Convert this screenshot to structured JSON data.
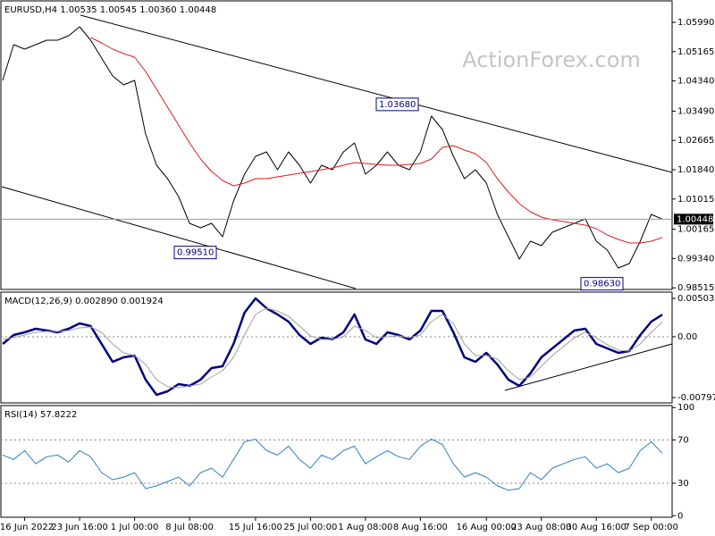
{
  "chart_data": [
    {
      "type": "line",
      "title": "EURUSD,H4  1.00535 1.00545 1.00360 1.00448",
      "watermark": "ActionForex.com",
      "ylim": [
        0.98495,
        1.06568
      ],
      "yticks": [
        {
          "value": 1.0599,
          "label": "1.05990"
        },
        1.05165,
        {
          "value": 1.0434,
          "label": "1.04340"
        },
        {
          "value": 1.0349,
          "label": "1.03490"
        },
        1.02665,
        {
          "value": 1.0184,
          "label": "1.01840"
        },
        1.01015,
        1.00165,
        {
          "value": 0.9934,
          "label": "0.99340"
        },
        0.98515
      ],
      "annotations": [
        {
          "value": 1.0368,
          "label": "1.03680"
        },
        {
          "value": 0.9951,
          "label": "0.99510"
        },
        {
          "value": 0.9863,
          "label": "0.98630"
        }
      ],
      "series": [
        {
          "color": "#000000",
          "values": [
            1.04355,
            1.05361,
            1.05235,
            1.05361,
            1.05487,
            1.05487,
            1.05613,
            1.05864,
            1.05487,
            1.04984,
            1.04481,
            1.04229,
            1.04355,
            1.02846,
            1.01966,
            1.01589,
            1.01086,
            1.00331,
            1.00205,
            1.00331,
            0.99954,
            1.0096,
            1.01714,
            1.02217,
            1.02343,
            1.0184,
            1.02343,
            1.01966,
            1.01463,
            1.01966,
            1.0184,
            1.02343,
            1.02595,
            1.01714,
            1.01966,
            1.02343,
            1.01966,
            1.0184,
            1.02343,
            1.03349,
            1.02972,
            1.02217,
            1.01589,
            1.0184,
            1.01463,
            1.00583,
            0.99954,
            0.99325,
            0.99828,
            0.99702,
            1.0008,
            1.00205,
            1.00331,
            1.00457,
            0.99828,
            0.99577,
            0.99074,
            0.992,
            0.99828,
            1.00583,
            1.00448
          ]
        },
        {
          "color": "#e41a1c",
          "values": [
            null,
            null,
            null,
            null,
            null,
            null,
            null,
            null,
            1.05562,
            1.05412,
            1.05235,
            1.0511,
            1.05009,
            1.04607,
            1.04104,
            1.03601,
            1.03098,
            1.02595,
            1.02142,
            1.0179,
            1.01538,
            1.01388,
            1.01463,
            1.01589,
            1.01589,
            1.01639,
            1.0169,
            1.0174,
            1.0179,
            1.0184,
            1.0189,
            1.01966,
            1.02041,
            1.02016,
            1.01991,
            1.01966,
            1.01966,
            1.01991,
            1.02016,
            1.02142,
            1.02469,
            1.02519,
            1.02394,
            1.02293,
            1.02041,
            1.01589,
            1.01211,
            1.00885,
            1.00658,
            1.00507,
            1.00432,
            1.00382,
            1.00331,
            1.00281,
            1.0018,
            1.00004,
            0.99879,
            0.99778,
            0.99778,
            0.99828,
            0.99929
          ]
        }
      ]
    },
    {
      "type": "line",
      "title": "MACD(12,26,9) 0.002890 0.001924",
      "ylim": [
        -0.00856,
        0.005738
      ],
      "yticks": [
        0.005035,
        {
          "value": 0,
          "label": "0.00"
        },
        -0.007973
      ],
      "levels": [
        0
      ],
      "series": [
        {
          "color": "#000080",
          "values": [
            -0.00094,
            0.00023,
            0.00058,
            0.00105,
            0.00082,
            0.00058,
            0.00105,
            0.00175,
            0.0014,
            -0.00094,
            -0.00329,
            -0.0027,
            -0.00247,
            -0.00563,
            -0.00762,
            -0.00715,
            -0.00622,
            -0.00645,
            -0.00563,
            -0.00411,
            -0.00387,
            -0.00094,
            0.00316,
            0.00504,
            0.00375,
            0.00293,
            0.00199,
            0.00023,
            -0.00094,
            -0.00012,
            -0.00036,
            0.00058,
            0.00293,
            -0.00036,
            -0.00094,
            0.00058,
            0.00023,
            -0.00036,
            0.00082,
            0.00339,
            0.00339,
            0.00058,
            -0.0027,
            -0.00329,
            -0.00211,
            -0.00364,
            -0.00563,
            -0.00645,
            -0.00481,
            -0.0027,
            -0.00153,
            -0.00036,
            0.00082,
            0.00105,
            -0.00094,
            -0.00153,
            -0.00211,
            -0.00188,
            0.00023,
            0.00199,
            0.00289
          ]
        },
        {
          "color": "#a0a0a0",
          "values": [
            -0.00036,
            -0.00012,
            0.00023,
            0.00058,
            0.0007,
            0.0007,
            0.00082,
            0.00117,
            0.00128,
            0.00058,
            -0.00094,
            -0.00211,
            -0.00247,
            -0.00364,
            -0.00563,
            -0.00657,
            -0.00669,
            -0.00645,
            -0.00622,
            -0.00528,
            -0.00446,
            -0.0027,
            0.00023,
            0.00293,
            0.00375,
            0.00339,
            0.00269,
            0.0014,
            0.00011,
            -0.00036,
            -0.00036,
            0,
            0.0014,
            0.00082,
            -0.00012,
            0,
            0.00011,
            -0.00012,
            0.00023,
            0.00199,
            0.00293,
            0.00175,
            -0.00094,
            -0.00247,
            -0.00247,
            -0.00293,
            -0.00446,
            -0.00563,
            -0.00528,
            -0.00387,
            -0.00247,
            -0.0013,
            -0.00012,
            0.00058,
            -0.00012,
            -0.00106,
            -0.00176,
            -0.00188,
            -0.00094,
            0.00058,
            0.001924
          ]
        }
      ]
    },
    {
      "type": "line",
      "title": "RSI(14) 57.8222",
      "ylim": [
        -0.6,
        101
      ],
      "yticks": [
        100,
        70,
        30,
        0
      ],
      "levels": [
        70,
        30
      ],
      "xlim": [
        0,
        60
      ],
      "xticks": [
        {
          "value": 2,
          "label": "16 Jun 2022"
        },
        {
          "value": 7,
          "label": "23 Jun 16:00"
        },
        {
          "value": 12,
          "label": "1 Jul 00:00"
        },
        {
          "value": 17,
          "label": "8 Jul 08:00"
        },
        {
          "value": 23,
          "label": "15 Jul 16:00"
        },
        {
          "value": 28,
          "label": "25 Jul 00:00"
        },
        {
          "value": 33,
          "label": "1 Aug 08:00"
        },
        {
          "value": 38,
          "label": "8 Aug 16:00"
        },
        {
          "value": 44,
          "label": "16 Aug 00:00"
        },
        {
          "value": 49,
          "label": "23 Aug 08:00"
        },
        {
          "value": 54,
          "label": "30 Aug 16:00"
        },
        {
          "value": 59,
          "label": "7 Sep 00:00"
        }
      ],
      "series": [
        {
          "color": "#2f7fc8",
          "values": [
            56.1,
            52,
            60.2,
            48,
            54.5,
            56.1,
            49.6,
            60.2,
            54.5,
            39.8,
            33.3,
            35.7,
            39.8,
            25.1,
            27.6,
            31.6,
            35.7,
            27.6,
            39.8,
            43.9,
            35.7,
            52,
            68.4,
            70.8,
            60.2,
            56.1,
            64.3,
            52,
            43.9,
            56.1,
            52,
            60.2,
            64.3,
            48,
            54.5,
            60.2,
            54.5,
            52,
            64.3,
            70.8,
            65.9,
            48,
            35.7,
            39.8,
            35.7,
            27.6,
            23.5,
            25.1,
            39.8,
            33.3,
            43.9,
            48,
            52,
            54.5,
            43.9,
            48,
            39.8,
            43.9,
            60.2,
            68.4,
            57.8222
          ]
        }
      ]
    }
  ]
}
